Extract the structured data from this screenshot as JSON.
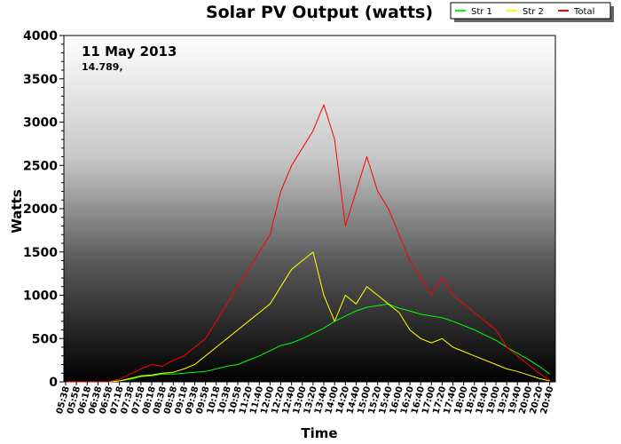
{
  "chart_data": {
    "type": "line",
    "title": "Solar PV Output (watts)",
    "xlabel": "Time",
    "ylabel": "Watts",
    "ylim": [
      0,
      4000
    ],
    "yticks": [
      0,
      500,
      1000,
      1500,
      2000,
      2500,
      3000,
      3500,
      4000
    ],
    "xticks": [
      "05:38",
      "05:58",
      "06:18",
      "06:38",
      "06:58",
      "07:18",
      "07:38",
      "07:58",
      "08:18",
      "08:38",
      "08:58",
      "09:18",
      "09:38",
      "09:58",
      "10:18",
      "10:38",
      "10:58",
      "11:20",
      "11:40",
      "12:00",
      "12:20",
      "12:40",
      "13:00",
      "13:20",
      "13:40",
      "14:00",
      "14:20",
      "14:40",
      "15:00",
      "15:20",
      "15:40",
      "16:00",
      "16:20",
      "16:40",
      "17:00",
      "17:20",
      "17:40",
      "18:00",
      "18:20",
      "18:40",
      "19:00",
      "19:20",
      "19:40",
      "20:00",
      "20:20",
      "20:40"
    ],
    "legend_position": "top-right",
    "annotations": {
      "date": "11 May 2013",
      "value": "14.789,"
    },
    "series": [
      {
        "name": "Str 1",
        "color": "#00ff00",
        "values": [
          0,
          0,
          0,
          0,
          0,
          10,
          30,
          60,
          70,
          90,
          90,
          100,
          110,
          120,
          150,
          180,
          200,
          250,
          300,
          360,
          420,
          450,
          500,
          560,
          620,
          700,
          760,
          820,
          860,
          880,
          900,
          850,
          820,
          780,
          760,
          740,
          700,
          650,
          600,
          540,
          480,
          400,
          330,
          260,
          180,
          90
        ]
      },
      {
        "name": "Str 2",
        "color": "#ffff00",
        "values": [
          0,
          0,
          0,
          0,
          0,
          10,
          40,
          70,
          80,
          100,
          110,
          150,
          200,
          300,
          400,
          500,
          600,
          700,
          800,
          900,
          1100,
          1300,
          1400,
          1500,
          1000,
          700,
          1000,
          900,
          1100,
          1000,
          900,
          800,
          600,
          500,
          450,
          500,
          400,
          350,
          300,
          250,
          200,
          150,
          120,
          80,
          40,
          10
        ]
      },
      {
        "name": "Total",
        "color": "#ff0000",
        "values": [
          0,
          0,
          0,
          0,
          0,
          30,
          90,
          150,
          200,
          180,
          250,
          300,
          400,
          500,
          700,
          900,
          1100,
          1300,
          1500,
          1700,
          2200,
          2500,
          2700,
          2900,
          3200,
          2800,
          1800,
          2200,
          2600,
          2200,
          2000,
          1700,
          1400,
          1200,
          1000,
          1200,
          1000,
          900,
          800,
          700,
          600,
          400,
          300,
          200,
          100,
          20
        ]
      }
    ]
  }
}
